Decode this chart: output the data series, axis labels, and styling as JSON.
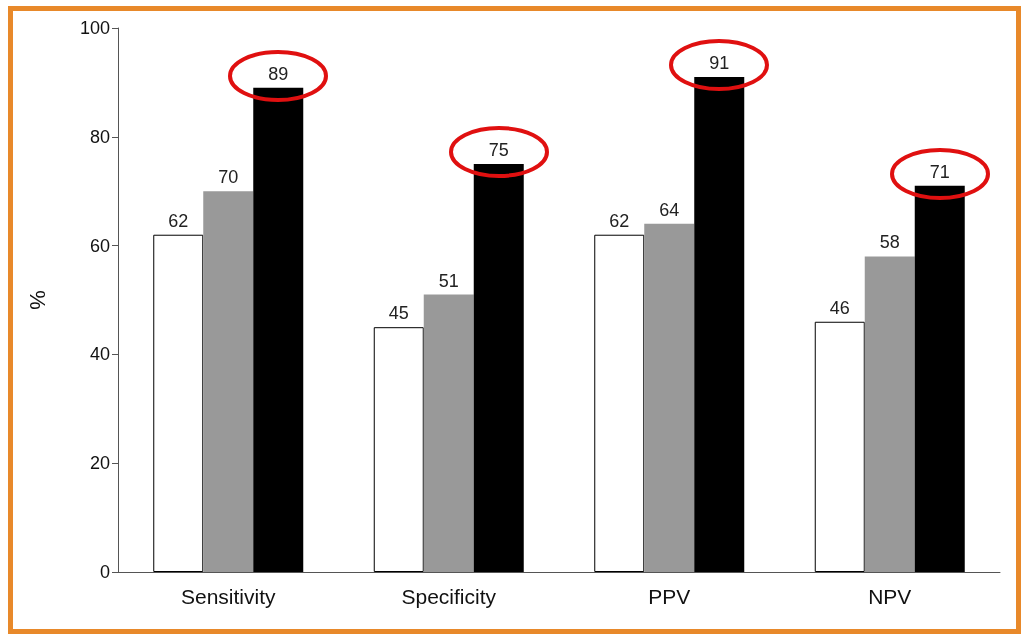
{
  "chart_data": {
    "type": "bar",
    "ylabel": "%",
    "categories": [
      "Sensitivity",
      "Specificity",
      "PPV",
      "NPV"
    ],
    "series": [
      {
        "color": "#ffffff",
        "values": [
          62,
          45,
          62,
          46
        ]
      },
      {
        "color": "#999999",
        "values": [
          70,
          51,
          64,
          58
        ]
      },
      {
        "color": "#000000",
        "values": [
          89,
          75,
          91,
          71
        ]
      }
    ],
    "ylim": [
      0,
      100
    ],
    "yticks": [
      0,
      20,
      40,
      60,
      80,
      100
    ],
    "grid": false,
    "data_labels": true
  }
}
